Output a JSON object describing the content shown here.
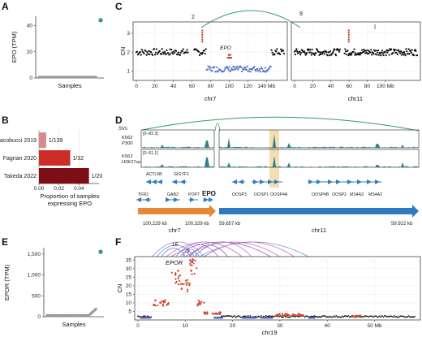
{
  "panels": {
    "A": "A",
    "B": "B",
    "C": "C",
    "D": "D",
    "E": "E",
    "F": "F"
  },
  "chart_data": [
    {
      "id": "A",
      "type": "scatter",
      "ylabel": "EPO (TPM)",
      "xlabel": "Samples",
      "ylim": [
        0,
        47
      ],
      "yticks": [
        0,
        20,
        40
      ],
      "n_samples": 30,
      "baseline_value": 0,
      "highlight": {
        "value": 44,
        "color": "#2e9e5b"
      }
    },
    {
      "id": "B",
      "type": "bar",
      "title": "",
      "xlabel": "Proportion of samples\nexpressing EPO",
      "ylabel": "",
      "xlim": [
        0,
        0.06
      ],
      "xticks": [
        "0.00",
        "0.02",
        "0.04"
      ],
      "categories": [
        "Iacobucci 2019",
        "Fagnan 2020",
        "Takeda 2022"
      ],
      "values": [
        0.0072,
        0.03125,
        0.05
      ],
      "labels": [
        "1/139",
        "1/32",
        "1/20"
      ],
      "colors": [
        "#d98b8b",
        "#cc2d28",
        "#7d0f17"
      ]
    },
    {
      "id": "C",
      "type": "scatter",
      "ylabel": "CN",
      "yticks": [
        1,
        2,
        3
      ],
      "ylim": [
        0.5,
        3.6
      ],
      "chroms": [
        {
          "name": "chr7",
          "xmax_mb": 159,
          "xticks": [
            0,
            20,
            40,
            60,
            80,
            100,
            120,
            140
          ],
          "last_label": "140 Mb"
        },
        {
          "name": "chr11",
          "xmax_mb": 135,
          "xticks": [
            0,
            20,
            40,
            60,
            80,
            100
          ],
          "last_label": "100 Mb"
        }
      ],
      "deletion": {
        "chrom": "chr7",
        "start_mb": 75,
        "end_mb": 145,
        "cn": 1.1,
        "color": "#5a73c5"
      },
      "epo": {
        "label": "EPO",
        "chrom": "chr7",
        "pos_mb": 100.3,
        "cn": 1.7
      },
      "breakpoints": [
        {
          "label": "2",
          "chrom": "chr7",
          "pos_mb": 71
        },
        {
          "label": "9",
          "chrom": "chr11",
          "pos_mb": 59.7
        }
      ],
      "arc_color": "#2e9e5b"
    },
    {
      "id": "D",
      "type": "other",
      "svs_label": "SVs",
      "tracks": [
        {
          "name1": "K562",
          "name2": "P300",
          "range": "[0–83.3]"
        },
        {
          "name1": "K562",
          "name2": "H3K27ac",
          "range": "[0–51.1]"
        }
      ],
      "genes_chr7": [
        {
          "name": "ACTL6B",
          "row": 0
        },
        {
          "name": "GIGYF1",
          "row": 0
        },
        {
          "name": "TFR2",
          "row": 1
        },
        {
          "name": "GAB2",
          "row": 1
        },
        {
          "name": "POP7",
          "row": 1
        },
        {
          "name": "EPO",
          "row": 1
        }
      ],
      "genes_chr11": [
        {
          "name": "OOSP3",
          "row": 0
        },
        {
          "name": "OOSP1",
          "row": 0
        },
        {
          "name": "OOSP4A",
          "row": 0
        },
        {
          "name": "OOSP4B",
          "row": 0
        },
        {
          "name": "OOSP2",
          "row": 0
        },
        {
          "name": "MS4A3",
          "row": 0
        },
        {
          "name": "MS4A2",
          "row": 0
        }
      ],
      "coords": {
        "chr7_start": "100,229 kb",
        "chr7_end": "100,329 kb",
        "chr11_start": "59,657 kb",
        "chr11_end": "59,922 kb"
      },
      "chr7_label": "chr7",
      "chr11_label": "chr11",
      "colors": {
        "chr7": "#e5883a",
        "chr11": "#2f7bbf",
        "highlight": "#f3d9a8",
        "signal": "#2e7f8a"
      }
    },
    {
      "id": "E",
      "type": "scatter",
      "ylabel": "EPOR (TPM)",
      "xlabel": "Samples",
      "ylim": [
        0,
        1650
      ],
      "yticks": [
        "0",
        "500",
        "1,000",
        "1,500"
      ],
      "n_samples": 30,
      "highlight": {
        "value": 1550,
        "color": "#2e9e5b"
      }
    },
    {
      "id": "F",
      "type": "scatter",
      "ylabel": "CN",
      "xlabel": "chr19",
      "ylim": [
        0,
        37
      ],
      "yticks": [
        5,
        10,
        15,
        20,
        25,
        30,
        35
      ],
      "xlim_mb": [
        0,
        59
      ],
      "xticks": [
        0,
        10,
        20,
        30,
        40,
        50
      ],
      "last_label": "50 Mb",
      "epor": {
        "label": "EPOR",
        "pos_mb": 11.4
      },
      "callouts": [
        "16",
        "9"
      ],
      "segments_red": [
        {
          "start": 3.0,
          "end": 6.5,
          "cn": 10
        },
        {
          "start": 7.0,
          "end": 9.0,
          "cn": 25
        },
        {
          "start": 9.0,
          "end": 11.0,
          "cn": 20
        },
        {
          "start": 11.0,
          "end": 12.6,
          "cn": 31
        },
        {
          "start": 12.6,
          "end": 14.0,
          "cn": 10
        },
        {
          "start": 14.0,
          "end": 17.5,
          "cn": 4
        },
        {
          "start": 29.0,
          "end": 35.0,
          "cn": 3
        },
        {
          "start": 45.0,
          "end": 47.0,
          "cn": 2.2
        }
      ],
      "segments_blue": [
        {
          "start": 0.5,
          "end": 2.8
        },
        {
          "start": 16.0,
          "end": 18.0
        },
        {
          "start": 22.0,
          "end": 25.0
        },
        {
          "start": 26.0,
          "end": 28.5
        },
        {
          "start": 36.0,
          "end": 37.5
        }
      ],
      "arc_colors": [
        "#9b7fd0",
        "#6a8fd6",
        "#c46ab0",
        "#8a5bbf"
      ]
    }
  ]
}
